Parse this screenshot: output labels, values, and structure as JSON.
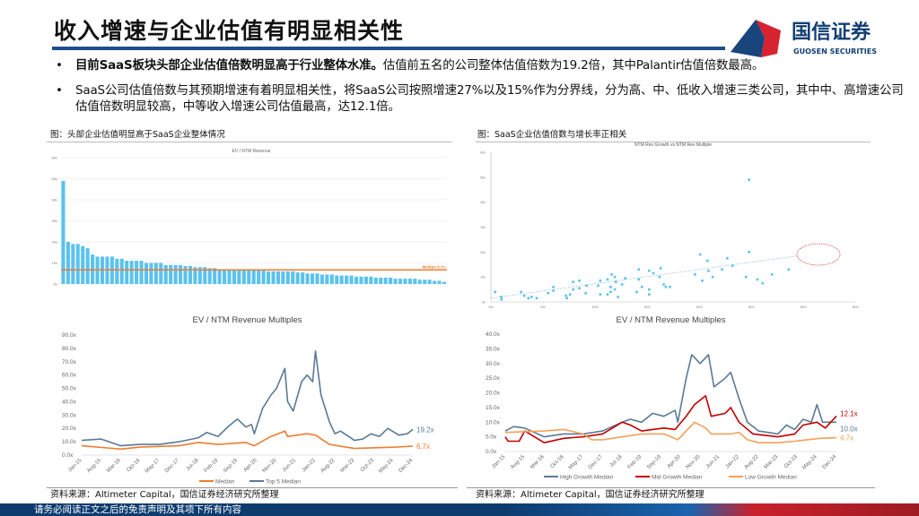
{
  "header": {
    "title": "收入增速与企业估值有明显相关性",
    "logo_text": "国信证券",
    "logo_en": "GUOSEN SECURITIES"
  },
  "bullets": [
    {
      "bold": "目前SaaS板块头部企业估值倍数明显高于行业整体水准。",
      "text": "估值前五名的公司整体估值倍数为19.2倍，其中Palantir估值倍数最高。"
    },
    {
      "bold": "",
      "text": "SaaS公司估值倍数与其预期增速有着明显相关性，将SaaS公司按照增速27%以及15%作为分界线，分为高、中、低收入增速三类公司，其中中、高增速公司估值倍数明显较高，中等收入增速公司估值最高，达12.1倍。"
    }
  ],
  "captions": {
    "left": "图：头部企业估值明显高于SaaS企业整体情况",
    "right": "图：SaaS企业估值倍数与增长率正相关"
  },
  "sources": {
    "left": "资料来源：Altimeter Capital，国信证券经济研究所整理",
    "right": "资料来源：Altimeter Capital，国信证券经济研究所整理"
  },
  "footer": {
    "text": "请务必阅读正文之后的免责声明及其项下所有内容"
  },
  "colors": {
    "brand_blue": "#1f4e8c",
    "bar": "#5bc2ee",
    "orange": "#ed7d31",
    "slate": "#5b7a96",
    "red": "#c00000",
    "light_orange": "#f4a05a"
  },
  "chart_data": [
    {
      "type": "bar",
      "title": "EV / NTM Revenue",
      "ylim": [
        0,
        60
      ],
      "yticks": [
        "0x",
        "10x",
        "20x",
        "30x",
        "40x",
        "50x",
        "60x"
      ],
      "values": [
        49,
        20,
        19,
        19,
        18,
        17,
        14,
        13,
        13,
        13,
        13,
        12,
        12,
        11,
        11,
        11,
        11,
        10,
        10,
        10,
        10,
        9,
        9,
        9,
        9,
        8.5,
        8.5,
        8,
        8,
        8,
        7.5,
        7.5,
        7,
        7,
        7,
        7,
        7,
        7,
        7,
        7,
        6.5,
        6.5,
        6,
        6,
        6,
        6,
        6,
        6,
        5.5,
        5.5,
        5,
        5,
        5,
        4.5,
        4.5,
        4.5,
        4,
        4,
        4,
        4,
        3.5,
        3.5,
        3.5,
        3.5,
        3,
        3,
        3,
        3,
        2.5,
        2.5,
        2.5,
        2.5,
        2.5,
        2,
        2,
        2,
        1.5,
        1.5,
        1
      ],
      "median": 6.7,
      "median_label": "Median 6.7x"
    },
    {
      "type": "scatter",
      "title": "NTM Rev Growth vs NTM Rev Multiple",
      "xlim": [
        0,
        35
      ],
      "ylim": [
        0,
        60
      ],
      "xticks": [
        "0%",
        "5%",
        "10%",
        "15%",
        "20%",
        "25%",
        "30%",
        "35%"
      ],
      "yticks": [
        "0x",
        "10x",
        "20x",
        "30x",
        "40x",
        "50x",
        "60x"
      ],
      "points": [
        [
          24.8,
          49
        ],
        [
          24.8,
          20
        ],
        [
          20.1,
          19
        ],
        [
          22.7,
          17.5
        ],
        [
          20.8,
          16.5
        ],
        [
          28.6,
          13
        ],
        [
          23.2,
          14.5
        ],
        [
          22.2,
          13
        ],
        [
          20.9,
          12.5
        ],
        [
          19.6,
          11
        ],
        [
          24.5,
          10
        ],
        [
          27,
          11
        ],
        [
          25.6,
          9
        ],
        [
          26.1,
          7.5
        ],
        [
          21.3,
          10
        ],
        [
          20.3,
          8.5
        ],
        [
          16.3,
          13.5
        ],
        [
          15.2,
          12.5
        ],
        [
          14.2,
          13
        ],
        [
          15.6,
          11.5
        ],
        [
          16.2,
          10
        ],
        [
          14.2,
          9
        ],
        [
          14.5,
          6
        ],
        [
          15.2,
          5
        ],
        [
          14,
          4
        ],
        [
          15.2,
          3
        ],
        [
          16.6,
          7
        ],
        [
          16.8,
          6
        ],
        [
          17.2,
          6
        ],
        [
          11.6,
          11
        ],
        [
          11.9,
          10
        ],
        [
          11.2,
          9
        ],
        [
          10.5,
          8.5
        ],
        [
          12.9,
          9.5
        ],
        [
          12,
          8
        ],
        [
          12.6,
          7
        ],
        [
          10.3,
          6.5
        ],
        [
          11.5,
          6
        ],
        [
          11.9,
          5
        ],
        [
          11.5,
          4
        ],
        [
          11.2,
          3
        ],
        [
          10.5,
          3
        ],
        [
          12.2,
          2
        ],
        [
          8.5,
          8.5
        ],
        [
          7.9,
          8
        ],
        [
          9.2,
          6.5
        ],
        [
          8.5,
          5.5
        ],
        [
          7.9,
          5
        ],
        [
          9.1,
          3.5
        ],
        [
          7.6,
          3
        ],
        [
          7.2,
          2.5
        ],
        [
          7.3,
          1.5
        ],
        [
          6,
          6
        ],
        [
          6,
          4.5
        ],
        [
          5.5,
          3.5
        ],
        [
          2.9,
          4
        ],
        [
          3.2,
          2.5
        ],
        [
          3.6,
          1.5
        ],
        [
          3.9,
          2
        ],
        [
          4.4,
          1.5
        ],
        [
          1,
          2
        ],
        [
          1,
          1
        ],
        [
          0.4,
          4
        ]
      ],
      "trendline": true
    },
    {
      "type": "line",
      "title": "EV / NTM Revenue Multiples",
      "ylim": [
        0,
        90
      ],
      "yticks": [
        "0.0x",
        "10.0x",
        "20.0x",
        "30.0x",
        "40.0x",
        "50.0x",
        "60.0x",
        "70.0x",
        "80.0x",
        "90.0x"
      ],
      "xticks": [
        "Jan-15",
        "Aug-15",
        "Mar-16",
        "Oct-16",
        "May-17",
        "Dec-17",
        "Jul-18",
        "Feb-19",
        "Sep-19",
        "Apr-20",
        "Nov-20",
        "Jun-21",
        "Jan-22",
        "Aug-22",
        "Mar-23",
        "Oct-23",
        "May-24",
        "Dec-24"
      ],
      "series": [
        {
          "name": "Median",
          "color": "#ed7d31",
          "end_label": "6.7x",
          "points": [
            [
              "2015-01",
              7
            ],
            [
              "2016-03",
              4.5
            ],
            [
              "2016-10",
              6
            ],
            [
              "2017-12",
              7
            ],
            [
              "2018-07",
              9.5
            ],
            [
              "2019-02",
              8
            ],
            [
              "2019-12",
              9.5
            ],
            [
              "2020-03",
              7
            ],
            [
              "2020-09",
              14
            ],
            [
              "2021-02",
              18
            ],
            [
              "2021-03",
              14
            ],
            [
              "2021-10",
              16
            ],
            [
              "2022-01",
              15
            ],
            [
              "2022-06",
              8
            ],
            [
              "2023-03",
              5
            ],
            [
              "2024-06",
              6
            ],
            [
              "2024-12",
              6.7
            ]
          ]
        },
        {
          "name": "Top 5 Median",
          "color": "#5b7a96",
          "end_label": "19.2x",
          "points": [
            [
              "2015-01",
              11
            ],
            [
              "2015-08",
              12
            ],
            [
              "2016-03",
              7
            ],
            [
              "2016-10",
              8
            ],
            [
              "2017-05",
              8
            ],
            [
              "2017-12",
              10
            ],
            [
              "2018-07",
              13
            ],
            [
              "2018-10",
              17
            ],
            [
              "2019-02",
              14
            ],
            [
              "2019-06",
              22
            ],
            [
              "2019-09",
              27
            ],
            [
              "2019-12",
              21
            ],
            [
              "2020-02",
              23
            ],
            [
              "2020-03",
              16
            ],
            [
              "2020-06",
              35
            ],
            [
              "2020-09",
              45
            ],
            [
              "2020-11",
              50
            ],
            [
              "2021-02",
              65
            ],
            [
              "2021-03",
              40
            ],
            [
              "2021-05",
              33
            ],
            [
              "2021-08",
              55
            ],
            [
              "2021-10",
              60
            ],
            [
              "2021-12",
              55
            ],
            [
              "2022-01",
              78
            ],
            [
              "2022-03",
              45
            ],
            [
              "2022-06",
              25
            ],
            [
              "2022-08",
              16
            ],
            [
              "2022-10",
              18
            ],
            [
              "2023-03",
              11
            ],
            [
              "2023-06",
              12
            ],
            [
              "2023-09",
              16
            ],
            [
              "2023-12",
              14
            ],
            [
              "2024-03",
              20
            ],
            [
              "2024-07",
              15
            ],
            [
              "2024-10",
              16
            ],
            [
              "2024-12",
              19.2
            ]
          ]
        }
      ]
    },
    {
      "type": "line",
      "title": "EV / NTM Revenue Multiples",
      "ylim": [
        0,
        40
      ],
      "yticks": [
        "0.0x",
        "5.0x",
        "10.0x",
        "15.0x",
        "20.0x",
        "25.0x",
        "30.0x",
        "35.0x",
        "40.0x"
      ],
      "xticks": [
        "Jan-15",
        "Aug-15",
        "Mar-16",
        "Oct-16",
        "May-17",
        "Dec-17",
        "Jul-18",
        "Feb-19",
        "Sep-19",
        "Apr-20",
        "Nov-20",
        "Jun-21",
        "Jan-22",
        "Aug-22",
        "Mar-23",
        "Oct-23",
        "May-24",
        "Dec-24"
      ],
      "series": [
        {
          "name": "High Growth Median",
          "color": "#5b7a96",
          "end_label": "10.0x",
          "points": [
            [
              "2015-01",
              7
            ],
            [
              "2015-04",
              8.5
            ],
            [
              "2015-08",
              8
            ],
            [
              "2016-03",
              5
            ],
            [
              "2016-10",
              6
            ],
            [
              "2017-05",
              6
            ],
            [
              "2017-12",
              7
            ],
            [
              "2018-07",
              10
            ],
            [
              "2018-10",
              11
            ],
            [
              "2019-02",
              10
            ],
            [
              "2019-06",
              13
            ],
            [
              "2019-10",
              12
            ],
            [
              "2020-02",
              14
            ],
            [
              "2020-03",
              10
            ],
            [
              "2020-06",
              25
            ],
            [
              "2020-08",
              33
            ],
            [
              "2020-11",
              30
            ],
            [
              "2021-02",
              33
            ],
            [
              "2021-04",
              22
            ],
            [
              "2021-08",
              25
            ],
            [
              "2021-10",
              27
            ],
            [
              "2022-01",
              18
            ],
            [
              "2022-04",
              10
            ],
            [
              "2022-08",
              7
            ],
            [
              "2023-03",
              6
            ],
            [
              "2023-06",
              9
            ],
            [
              "2023-09",
              7.5
            ],
            [
              "2023-12",
              11
            ],
            [
              "2024-03",
              10
            ],
            [
              "2024-05",
              16
            ],
            [
              "2024-07",
              10
            ],
            [
              "2024-12",
              10
            ]
          ]
        },
        {
          "name": "Mid Growth Median",
          "color": "#c00000",
          "end_label": "12.1x",
          "points": [
            [
              "2015-01",
              5
            ],
            [
              "2015-02",
              3.5
            ],
            [
              "2015-06",
              3.5
            ],
            [
              "2015-08",
              7
            ],
            [
              "2016-03",
              3
            ],
            [
              "2016-10",
              4.5
            ],
            [
              "2017-05",
              5
            ],
            [
              "2017-12",
              6
            ],
            [
              "2018-07",
              10
            ],
            [
              "2018-10",
              9
            ],
            [
              "2019-02",
              7
            ],
            [
              "2019-10",
              8
            ],
            [
              "2020-02",
              7.5
            ],
            [
              "2020-06",
              12
            ],
            [
              "2020-09",
              16
            ],
            [
              "2021-01",
              19
            ],
            [
              "2021-03",
              12
            ],
            [
              "2021-08",
              13
            ],
            [
              "2021-10",
              15
            ],
            [
              "2022-01",
              10
            ],
            [
              "2022-06",
              6
            ],
            [
              "2023-03",
              5
            ],
            [
              "2023-09",
              6
            ],
            [
              "2023-12",
              9
            ],
            [
              "2024-05",
              10
            ],
            [
              "2024-08",
              8
            ],
            [
              "2024-12",
              12.1
            ]
          ]
        },
        {
          "name": "Low Growth Median",
          "color": "#f4a05a",
          "end_label": "4.7x",
          "points": [
            [
              "2015-01",
              6.5
            ],
            [
              "2016-03",
              7
            ],
            [
              "2016-10",
              7.5
            ],
            [
              "2017-05",
              6
            ],
            [
              "2017-08",
              4
            ],
            [
              "2017-12",
              4
            ],
            [
              "2018-07",
              5
            ],
            [
              "2019-02",
              6
            ],
            [
              "2019-10",
              6
            ],
            [
              "2020-03",
              4
            ],
            [
              "2020-06",
              7
            ],
            [
              "2020-09",
              10
            ],
            [
              "2021-01",
              8
            ],
            [
              "2021-03",
              6
            ],
            [
              "2021-10",
              6
            ],
            [
              "2022-01",
              6.5
            ],
            [
              "2022-04",
              4
            ],
            [
              "2022-08",
              3
            ],
            [
              "2023-03",
              3
            ],
            [
              "2023-09",
              3.5
            ],
            [
              "2024-06",
              4.5
            ],
            [
              "2024-12",
              4.7
            ]
          ]
        }
      ]
    }
  ]
}
